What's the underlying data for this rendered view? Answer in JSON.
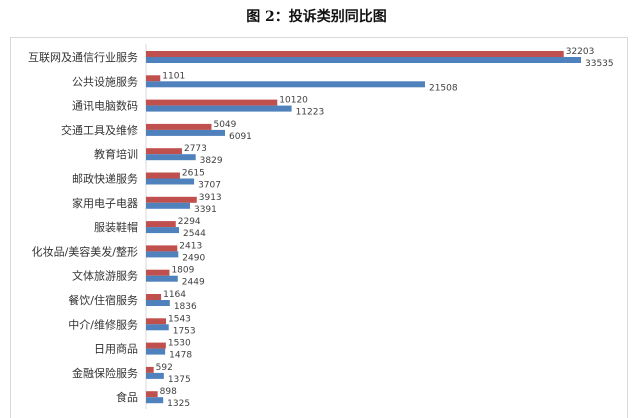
{
  "title": "图 2：投诉类别同比图",
  "chart_data": {
    "type": "bar",
    "orientation": "horizontal",
    "title": "图 2：投诉类别同比图",
    "categories": [
      "互联网及通信行业服务",
      "公共设施服务",
      "通讯电脑数码",
      "交通工具及维修",
      "教育培训",
      "邮政快递服务",
      "家用电子电器",
      "服装鞋帽",
      "化妆品/美容美发/整形",
      "文体旅游服务",
      "餐饮/住宿服务",
      "中介/维修服务",
      "日用商品",
      "金融保险服务",
      "食品"
    ],
    "series": [
      {
        "color": "#c0504d",
        "values": [
          32203,
          1101,
          10120,
          5049,
          2773,
          2615,
          3913,
          2294,
          2413,
          1809,
          1164,
          1543,
          1530,
          592,
          898
        ]
      },
      {
        "color": "#4f81bd",
        "values": [
          33535,
          21508,
          11223,
          6091,
          3829,
          3707,
          3391,
          2544,
          2490,
          2449,
          1836,
          1753,
          1478,
          1375,
          1325
        ]
      }
    ],
    "xlim": [
      0,
      33535
    ],
    "grid": false,
    "data_labels": true
  }
}
